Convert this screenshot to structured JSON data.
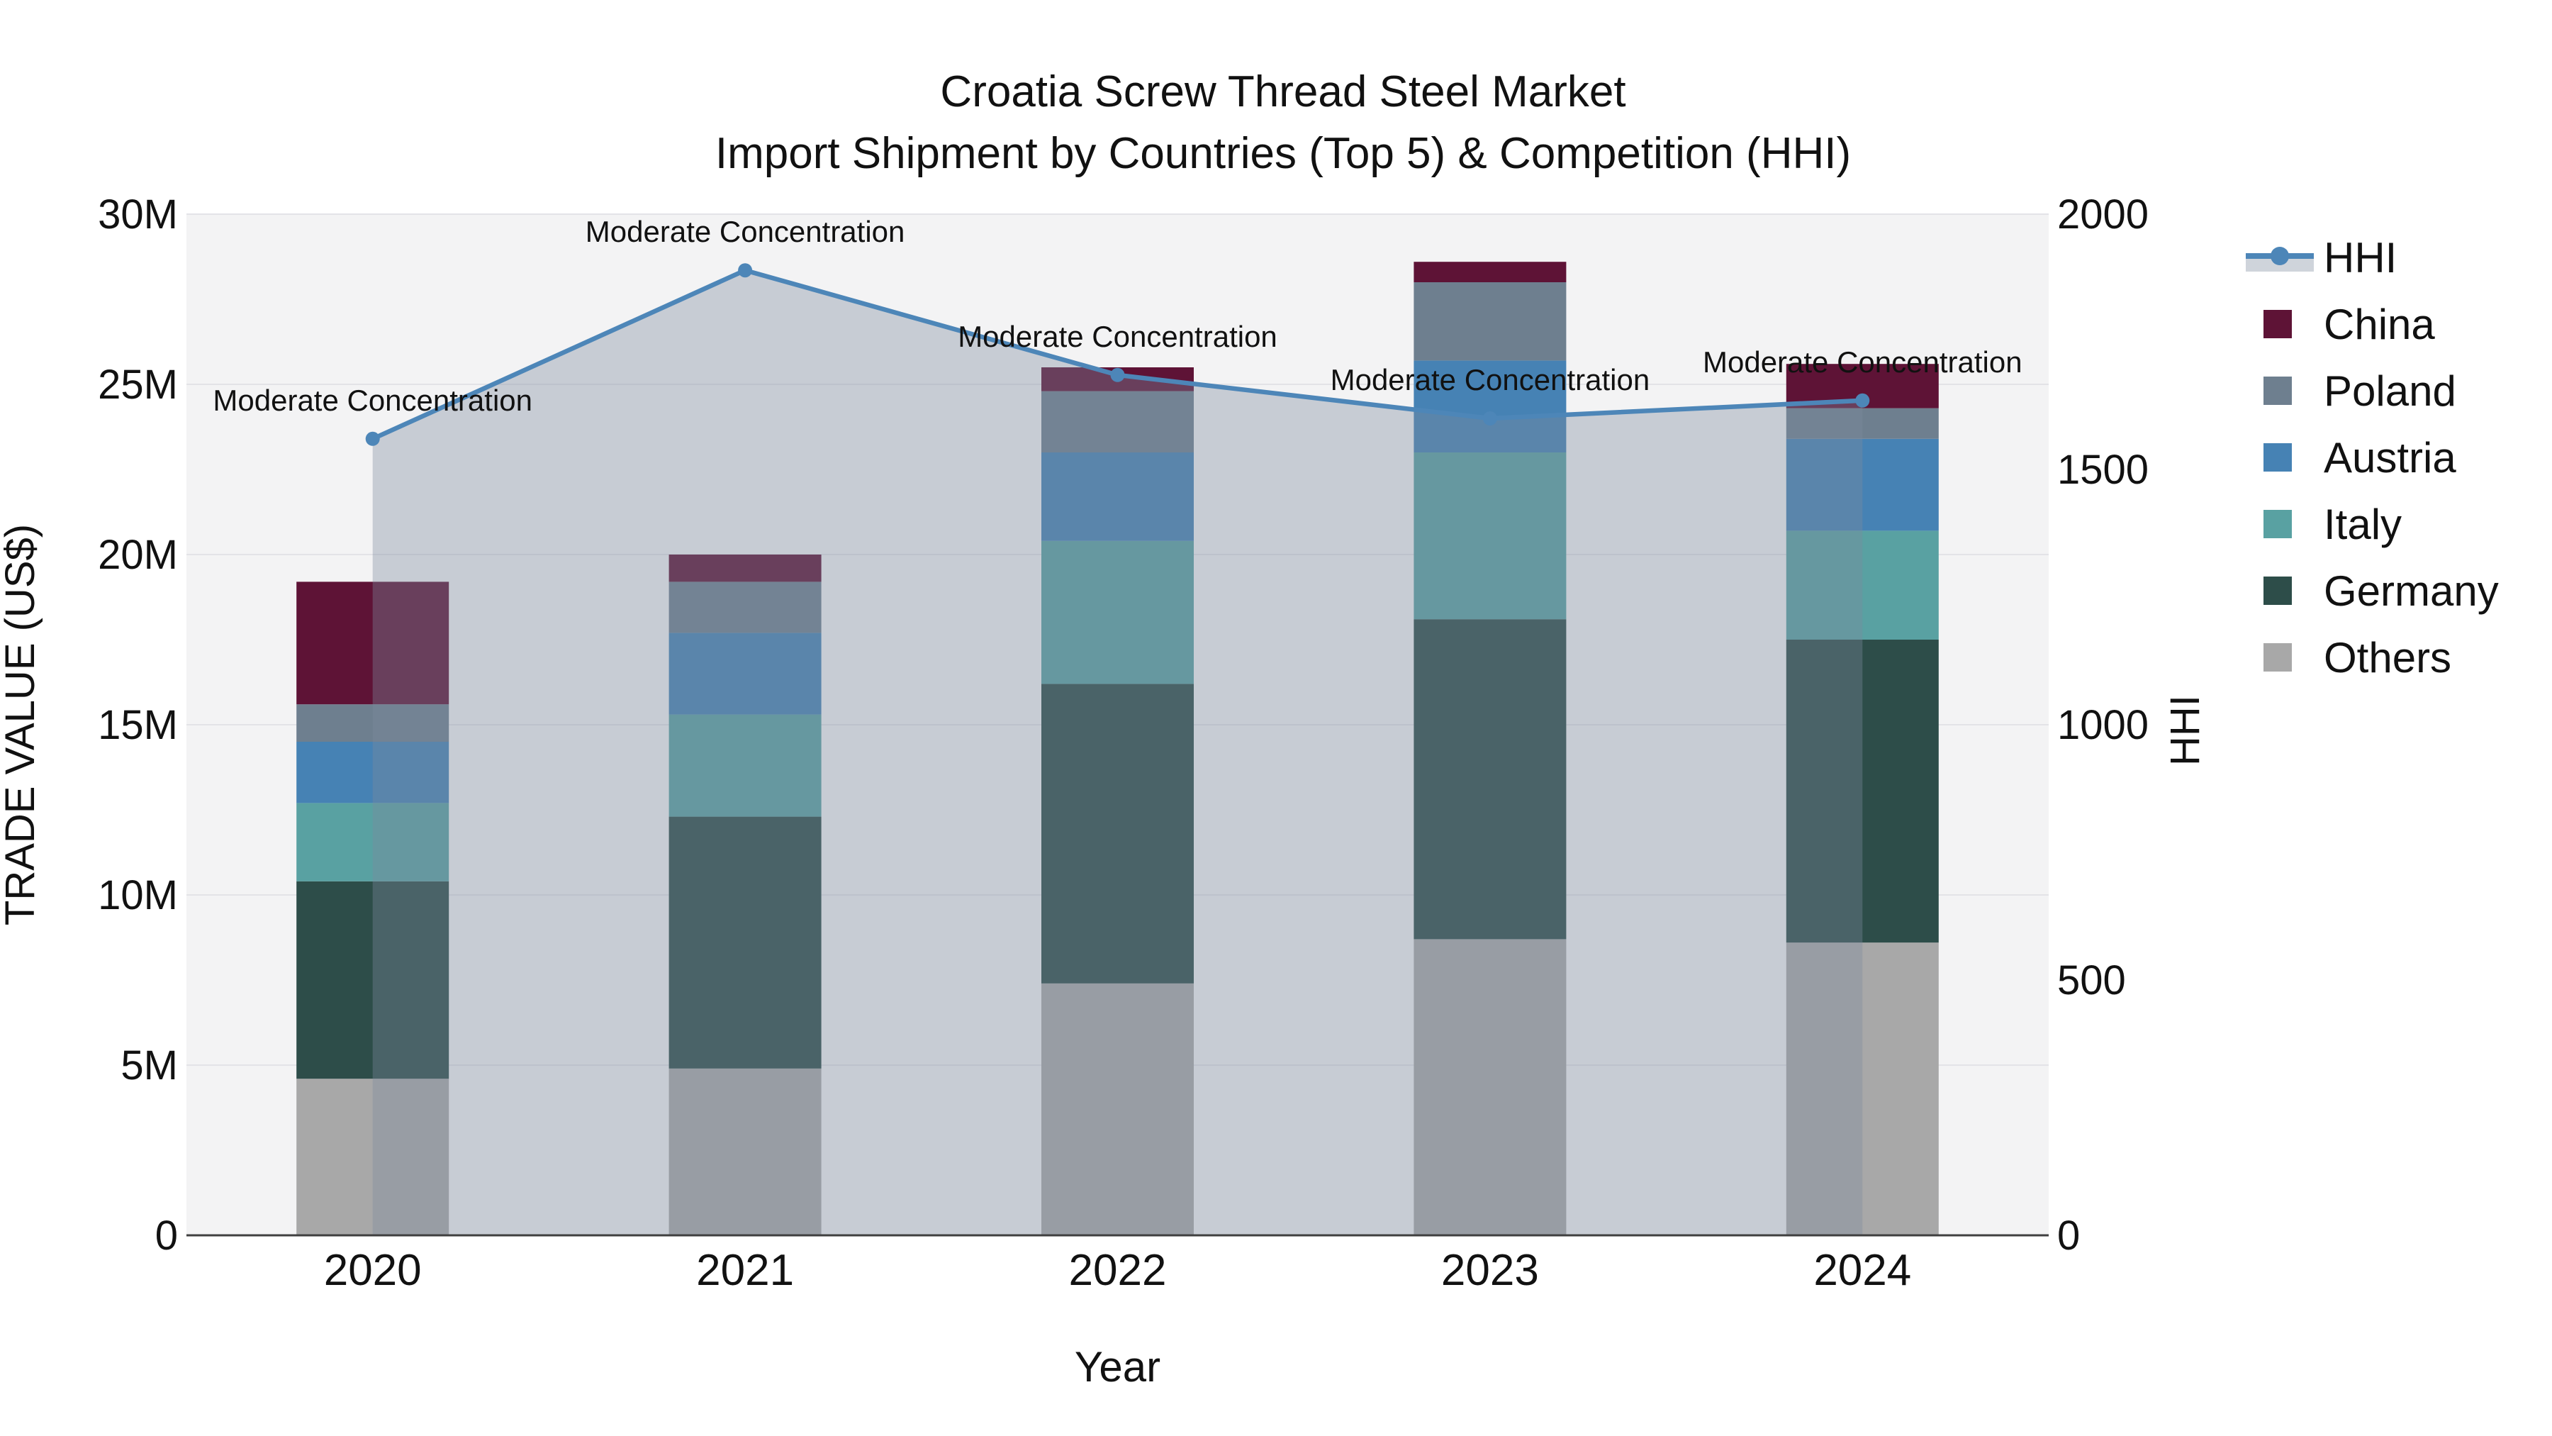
{
  "title": {
    "line1": "Croatia Screw Thread Steel Market",
    "line2": "Import Shipment by Countries (Top 5) & Competition (HHI)"
  },
  "axes": {
    "left": {
      "title": "TRADE VALUE (US$)",
      "ticks": [
        {
          "label": "0",
          "value": 0
        },
        {
          "label": "5M",
          "value": 5
        },
        {
          "label": "10M",
          "value": 10
        },
        {
          "label": "15M",
          "value": 15
        },
        {
          "label": "20M",
          "value": 20
        },
        {
          "label": "25M",
          "value": 25
        },
        {
          "label": "30M",
          "value": 30
        }
      ],
      "max": 30
    },
    "right": {
      "title": "HHI",
      "ticks": [
        {
          "label": "0",
          "value": 0
        },
        {
          "label": "500",
          "value": 500
        },
        {
          "label": "1000",
          "value": 1000
        },
        {
          "label": "1500",
          "value": 1500
        },
        {
          "label": "2000",
          "value": 2000
        }
      ],
      "max": 2000
    },
    "x": {
      "title": "Year",
      "categories": [
        "2020",
        "2021",
        "2022",
        "2023",
        "2024"
      ]
    }
  },
  "legend": {
    "items": [
      {
        "label": "HHI",
        "type": "line",
        "color": "#4d86b8"
      },
      {
        "label": "China",
        "type": "swatch",
        "color": "#5e1336"
      },
      {
        "label": "Poland",
        "type": "swatch",
        "color": "#6e7f8f"
      },
      {
        "label": "Austria",
        "type": "swatch",
        "color": "#4682b4"
      },
      {
        "label": "Italy",
        "type": "swatch",
        "color": "#59a1a2"
      },
      {
        "label": "Germany",
        "type": "swatch",
        "color": "#2d4d49"
      },
      {
        "label": "Others",
        "type": "swatch",
        "color": "#a8a8a8"
      }
    ]
  },
  "colors": {
    "hhi_line": "#4d86b8",
    "area_fill": "rgba(125,139,156,0.37)",
    "plot_background": "#f3f3f4",
    "gridline": "#e3e3e7",
    "axis_line": "#3f3f3f",
    "text": "#111111"
  },
  "chart_data": {
    "type": "bar",
    "subtype": "stacked bars (left axis, trade value in millions US$) + line with area fill (right axis, HHI)",
    "categories": [
      "2020",
      "2021",
      "2022",
      "2023",
      "2024"
    ],
    "values_unit": "million US$",
    "series": [
      {
        "name": "Others",
        "color": "#a8a8a8",
        "values": [
          4.6,
          4.9,
          7.4,
          8.7,
          8.6
        ]
      },
      {
        "name": "Germany",
        "color": "#2d4d49",
        "values": [
          5.8,
          7.4,
          8.8,
          9.4,
          8.9
        ]
      },
      {
        "name": "Italy",
        "color": "#59a1a2",
        "values": [
          2.3,
          3.0,
          4.2,
          4.9,
          3.2
        ]
      },
      {
        "name": "Austria",
        "color": "#4682b4",
        "values": [
          1.8,
          2.4,
          2.6,
          2.7,
          2.7
        ]
      },
      {
        "name": "Poland",
        "color": "#6e7f8f",
        "values": [
          1.1,
          1.5,
          1.8,
          2.3,
          0.9
        ]
      },
      {
        "name": "China",
        "color": "#5e1336",
        "values": [
          3.6,
          0.8,
          0.7,
          0.6,
          1.3
        ]
      }
    ],
    "stack_order": "bottom to top as listed",
    "line_series": {
      "name": "HHI",
      "axis": "right",
      "color": "#4d86b8",
      "fill": "rgba(125,139,156,0.37)",
      "values": [
        1560,
        1890,
        1685,
        1600,
        1635
      ]
    },
    "annotations": [
      {
        "category": "2020",
        "text": "Moderate Concentration"
      },
      {
        "category": "2021",
        "text": "Moderate Concentration"
      },
      {
        "category": "2022",
        "text": "Moderate Concentration"
      },
      {
        "category": "2023",
        "text": "Moderate Concentration"
      },
      {
        "category": "2024",
        "text": "Moderate Concentration"
      }
    ],
    "title": "Croatia Screw Thread Steel Market",
    "subtitle": "Import Shipment by Countries (Top 5) & Competition (HHI)",
    "xlabel": "Year",
    "ylabel_left": "TRADE VALUE (US$)",
    "ylabel_right": "HHI",
    "ylim_left": [
      0,
      30000000
    ],
    "ylim_right": [
      0,
      2000
    ],
    "grid": true,
    "legend_position": "right"
  }
}
